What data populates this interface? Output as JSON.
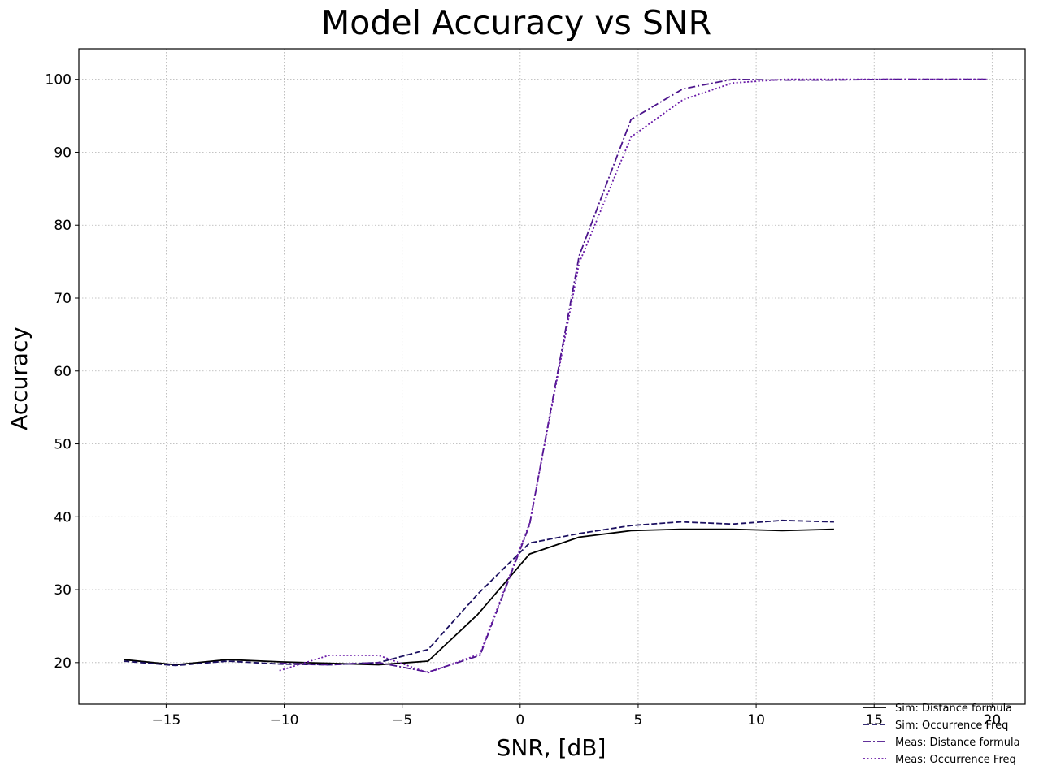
{
  "chart_data": {
    "type": "line",
    "title": "Model Accuracy vs SNR",
    "xlabel": "SNR, [dB]",
    "ylabel": "Accuracy",
    "xlim": [
      -18.7,
      21.4
    ],
    "ylim": [
      14.3,
      104.2
    ],
    "xticks": [
      -15,
      -10,
      -5,
      0,
      5,
      10,
      15,
      20
    ],
    "yticks": [
      20,
      30,
      40,
      50,
      60,
      70,
      80,
      90,
      100
    ],
    "grid": true,
    "legend_position": "bottom-right",
    "series": [
      {
        "name": "Sim: Distance formula",
        "color": "#000000",
        "dash": "solid",
        "x": [
          -16.8,
          -14.6,
          -12.4,
          -10.2,
          -8.1,
          -6.0,
          -3.9,
          -1.8,
          0.4,
          2.5,
          4.7,
          6.8,
          9.0,
          11.1,
          13.3
        ],
        "y": [
          20.4,
          19.7,
          20.4,
          20.1,
          19.9,
          19.7,
          20.2,
          26.6,
          34.9,
          37.2,
          38.1,
          38.3,
          38.3,
          38.1,
          38.3
        ]
      },
      {
        "name": "Sim: Occurrence Freq",
        "color": "#1b1060",
        "dash": "dashed",
        "x": [
          -16.8,
          -14.6,
          -12.4,
          -10.2,
          -8.1,
          -6.0,
          -3.9,
          -1.8,
          0.4,
          2.5,
          4.7,
          6.8,
          9.0,
          11.1,
          13.3
        ],
        "y": [
          20.2,
          19.6,
          20.2,
          19.8,
          19.7,
          20.0,
          21.8,
          29.4,
          36.4,
          37.7,
          38.8,
          39.3,
          39.0,
          39.5,
          39.3
        ]
      },
      {
        "name": "Meas: Distance formula",
        "color": "#4c148c",
        "dash": "dashdot",
        "x": [
          -10.2,
          -8.1,
          -6.0,
          -3.9,
          -1.7,
          0.4,
          2.5,
          4.7,
          6.9,
          9.0,
          11.2,
          13.3,
          15.5,
          17.6,
          19.8
        ],
        "y": [
          19.9,
          19.7,
          20.0,
          18.7,
          21.0,
          38.9,
          75.8,
          94.5,
          98.7,
          100.0,
          99.9,
          99.9,
          100.0,
          100.0,
          100.0
        ]
      },
      {
        "name": "Meas: Occurrence Freq",
        "color": "#6a1aa8",
        "dash": "dotted",
        "x": [
          -10.2,
          -8.1,
          -6.0,
          -3.9,
          -1.7,
          0.4,
          2.5,
          4.7,
          6.9,
          9.0,
          11.2,
          13.3,
          15.5,
          17.6,
          19.8
        ],
        "y": [
          18.9,
          21.0,
          21.0,
          18.6,
          21.2,
          39.1,
          74.8,
          92.1,
          97.2,
          99.5,
          100.0,
          100.0,
          100.0,
          100.0,
          100.0
        ]
      }
    ]
  }
}
